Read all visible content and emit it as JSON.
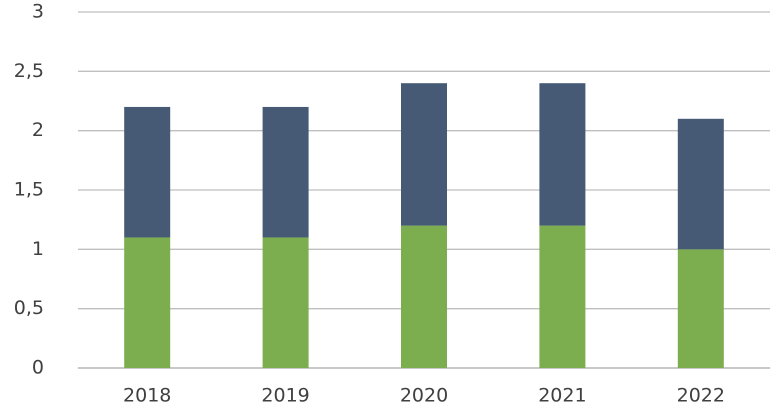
{
  "chart_data": {
    "type": "stacked_bar",
    "categories": [
      "2018",
      "2019",
      "2020",
      "2021",
      "2022"
    ],
    "series": [
      {
        "color": "#7cae4f",
        "values": [
          1.1,
          1.1,
          1.2,
          1.2,
          1.0
        ]
      },
      {
        "color": "#465a75",
        "values": [
          1.1,
          1.1,
          1.2,
          1.2,
          1.1
        ]
      }
    ],
    "ylim": [
      0,
      3
    ],
    "yticks": [
      0,
      {
        "value": 0.5,
        "label": "0,5"
      },
      1,
      {
        "value": 1.5,
        "label": "1,5"
      },
      2,
      {
        "value": 2.5,
        "label": "2,5"
      },
      3
    ],
    "grid": true
  }
}
